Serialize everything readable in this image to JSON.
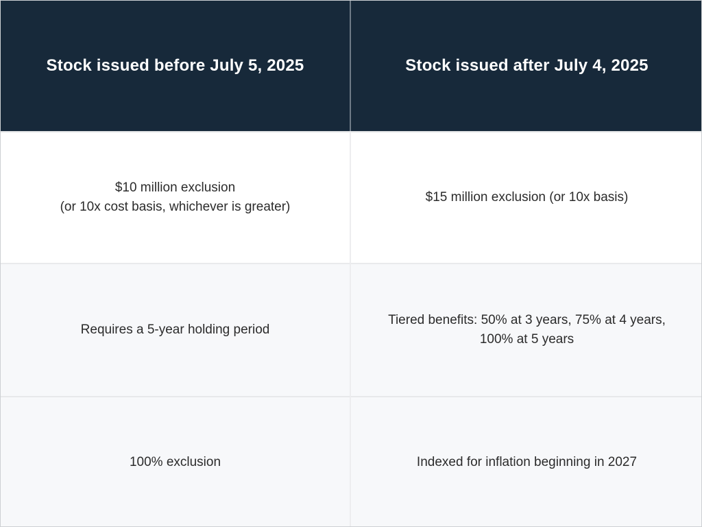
{
  "chart_data": {
    "type": "table",
    "columns": [
      "Stock issued before July 5, 2025",
      "Stock issued after July 4, 2025"
    ],
    "rows": [
      [
        "$10 million exclusion (or 10x cost basis, whichever is greater)",
        "$15 million exclusion (or 10x basis)"
      ],
      [
        "Requires a 5-year holding period",
        "Tiered benefits: 50% at 3 years, 75% at 4 years, 100% at 5 years"
      ],
      [
        "100% exclusion",
        "Indexed for inflation beginning in 2027"
      ]
    ]
  },
  "table": {
    "headers": {
      "before": "Stock issued before July 5, 2025",
      "after": "Stock issued after July 4, 2025"
    },
    "rows": [
      {
        "left": "$10 million exclusion\n(or 10x cost basis, whichever is greater)",
        "right": "$15 million exclusion (or 10x basis)"
      },
      {
        "left": "Requires a 5-year holding period",
        "right": "Tiered benefits: 50% at 3 years, 75% at 4 years, 100% at 5 years"
      },
      {
        "left": "100% exclusion",
        "right": "Indexed for inflation beginning in 2027"
      }
    ]
  },
  "colors": {
    "header_bg": "#17293a",
    "header_text": "#ffffff",
    "header_divider": "#6f7b87",
    "body_divider": "#ededef",
    "row_white_bg": "#ffffff",
    "row_gray_bg": "#f7f8fa",
    "body_text": "#2b2b2b"
  }
}
